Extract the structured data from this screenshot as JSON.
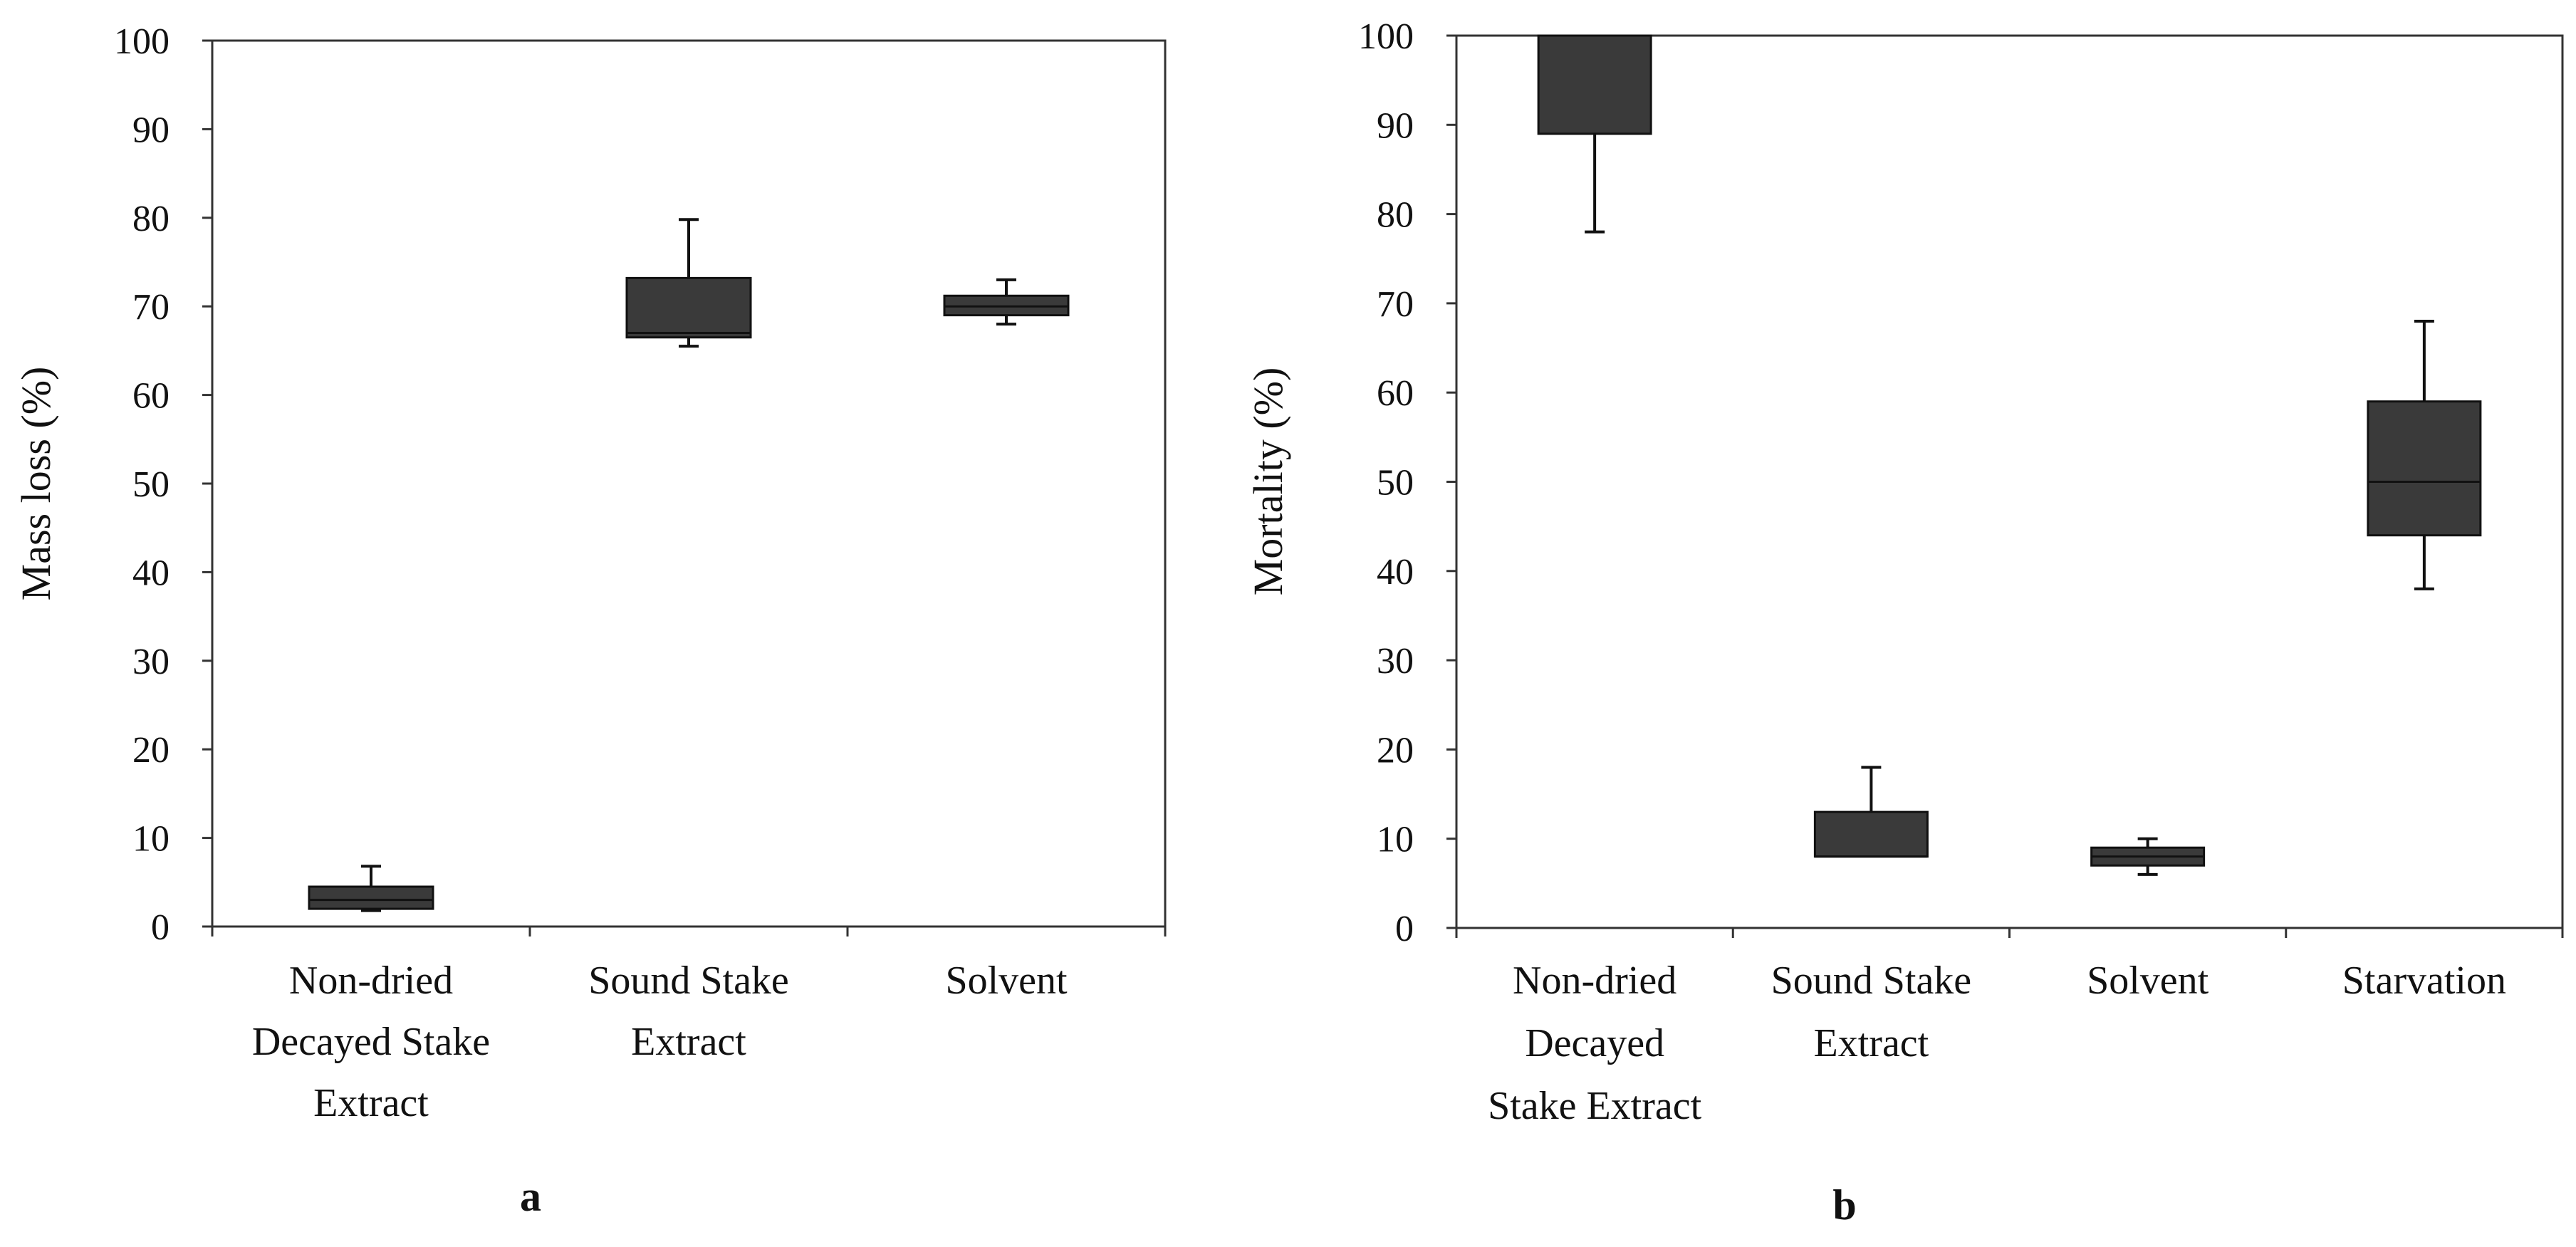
{
  "chart_data": [
    {
      "type": "boxplot",
      "panel_label": "a",
      "ylabel": "Mass loss (%)",
      "ylim": [
        0,
        100
      ],
      "yticks": [
        0,
        10,
        20,
        30,
        40,
        50,
        60,
        70,
        80,
        90,
        100
      ],
      "categories": [
        [
          "Non-dried",
          "Decayed Stake",
          "Extract"
        ],
        [
          "Sound Stake",
          "Extract"
        ],
        [
          "Solvent"
        ]
      ],
      "boxes": [
        {
          "min": 1.8,
          "q1": 2.0,
          "median": 3.0,
          "q3": 4.5,
          "max": 6.8
        },
        {
          "min": 65.5,
          "q1": 66.5,
          "median": 67.0,
          "q3": 73.2,
          "max": 79.8
        },
        {
          "min": 68.0,
          "q1": 69.0,
          "median": 70.0,
          "q3": 71.2,
          "max": 73.0
        }
      ],
      "box_color": "#3a3a3a"
    },
    {
      "type": "boxplot",
      "panel_label": "b",
      "ylabel": "Mortality (%)",
      "ylim": [
        0,
        100
      ],
      "yticks": [
        0,
        10,
        20,
        30,
        40,
        50,
        60,
        70,
        80,
        90,
        100
      ],
      "categories": [
        [
          "Non-dried",
          "Decayed",
          "Stake Extract"
        ],
        [
          "Sound Stake",
          "Extract"
        ],
        [
          "Solvent"
        ],
        [
          "Starvation"
        ]
      ],
      "boxes": [
        {
          "min": 78,
          "q1": 89,
          "median": 100,
          "q3": 100,
          "max": 100
        },
        {
          "min": 8,
          "q1": 8,
          "median": 8,
          "q3": 13,
          "max": 18
        },
        {
          "min": 6,
          "q1": 7,
          "median": 8,
          "q3": 9,
          "max": 10
        },
        {
          "min": 38,
          "q1": 44,
          "median": 50,
          "q3": 59,
          "max": 68
        }
      ],
      "box_color": "#3a3a3a"
    }
  ]
}
